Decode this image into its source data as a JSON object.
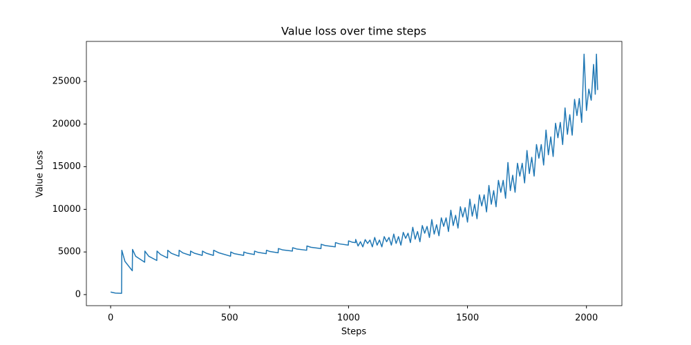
{
  "chart_data": {
    "type": "line",
    "title": "Value loss over time steps",
    "x_label": "Steps",
    "y_label": "Value Loss",
    "x": [
      0,
      20,
      46,
      47,
      60,
      91,
      92,
      105,
      143,
      144,
      160,
      194,
      195,
      210,
      239,
      240,
      255,
      287,
      288,
      303,
      335,
      336,
      352,
      385,
      386,
      402,
      432,
      433,
      455,
      504,
      505,
      520,
      559,
      560,
      575,
      604,
      605,
      620,
      654,
      655,
      670,
      704,
      705,
      722,
      764,
      765,
      782,
      824,
      825,
      842,
      884,
      885,
      902,
      944,
      945,
      962,
      999,
      1000,
      1015,
      1029,
      1030,
      1040,
      1050,
      1060,
      1070,
      1080,
      1090,
      1100,
      1110,
      1120,
      1130,
      1140,
      1150,
      1160,
      1170,
      1180,
      1190,
      1200,
      1210,
      1220,
      1230,
      1240,
      1250,
      1260,
      1270,
      1280,
      1290,
      1300,
      1310,
      1320,
      1330,
      1340,
      1350,
      1360,
      1370,
      1380,
      1390,
      1400,
      1410,
      1420,
      1430,
      1440,
      1450,
      1460,
      1470,
      1480,
      1490,
      1500,
      1510,
      1520,
      1530,
      1540,
      1550,
      1560,
      1570,
      1580,
      1590,
      1600,
      1610,
      1620,
      1630,
      1640,
      1650,
      1660,
      1670,
      1680,
      1690,
      1700,
      1710,
      1720,
      1730,
      1740,
      1750,
      1760,
      1770,
      1780,
      1790,
      1800,
      1810,
      1820,
      1830,
      1840,
      1850,
      1860,
      1870,
      1880,
      1890,
      1900,
      1910,
      1920,
      1930,
      1940,
      1950,
      1960,
      1970,
      1980,
      1990,
      2000,
      2010,
      2020,
      2030,
      2037,
      2042,
      2047
    ],
    "series": [
      {
        "color": "#1f77b4",
        "values": [
          300,
          180,
          150,
          5200,
          3900,
          2800,
          5300,
          4500,
          3800,
          5100,
          4500,
          4000,
          5100,
          4700,
          4300,
          5200,
          4850,
          4500,
          5200,
          4900,
          4600,
          5100,
          4850,
          4600,
          5100,
          4850,
          4600,
          5200,
          4900,
          4500,
          5000,
          4800,
          4600,
          5000,
          4850,
          4700,
          5100,
          4950,
          4800,
          5200,
          5050,
          4900,
          5400,
          5250,
          5100,
          5500,
          5350,
          5200,
          5700,
          5550,
          5400,
          5900,
          5750,
          5600,
          6100,
          5950,
          5800,
          6300,
          6150,
          6100,
          6470,
          5700,
          6200,
          5600,
          6450,
          6000,
          6400,
          5600,
          6700,
          5800,
          6400,
          5600,
          6800,
          6200,
          6700,
          5800,
          7100,
          6000,
          6800,
          5800,
          7300,
          6600,
          7200,
          6100,
          7900,
          6500,
          7400,
          6200,
          8100,
          7200,
          8000,
          6700,
          8800,
          7100,
          8200,
          6900,
          9000,
          8000,
          9000,
          7400,
          9900,
          8100,
          9300,
          7800,
          10300,
          9100,
          10200,
          8500,
          11200,
          9200,
          10600,
          8900,
          11700,
          10400,
          11700,
          9700,
          12800,
          10600,
          12200,
          10300,
          13400,
          12000,
          13400,
          11300,
          15500,
          12200,
          14000,
          12000,
          15400,
          13900,
          15400,
          13100,
          16900,
          14200,
          16100,
          13900,
          17600,
          16000,
          17600,
          15200,
          19300,
          16400,
          18500,
          16200,
          20100,
          18400,
          20200,
          17600,
          21900,
          18800,
          21100,
          18700,
          22900,
          21000,
          23000,
          20200,
          28200,
          21600,
          24100,
          22800,
          27000,
          23500,
          28200,
          24000
        ]
      }
    ],
    "xlim": [
      -102,
      2149
    ],
    "ylim": [
      -1300,
      29700
    ],
    "xticks": [
      0,
      500,
      1000,
      1500,
      2000
    ],
    "yticks": [
      0,
      5000,
      10000,
      15000,
      20000,
      25000
    ]
  }
}
